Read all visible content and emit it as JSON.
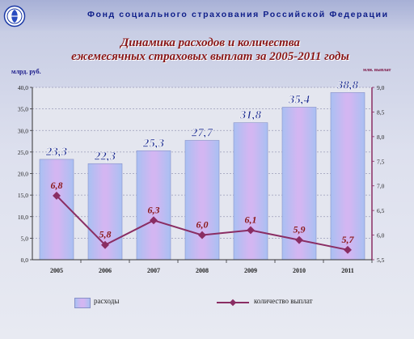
{
  "header": {
    "org_name": "Фонд социального страхования Российской Федерации",
    "title_line1": "Динамика расходов и количества",
    "title_line2": "ежемесячных страховых выплат за 2005-2011 годы"
  },
  "colors": {
    "bar_light": "#a9c0f2",
    "bar_mid": "#d3b6f2",
    "bar_label": "#1a2a8e",
    "line": "#8a2d63",
    "line_label": "#8a1818",
    "title": "#8a1818",
    "header_text": "#10208a"
  },
  "chart_data": {
    "type": "bar",
    "categories": [
      "2005",
      "2006",
      "2007",
      "2008",
      "2009",
      "2010",
      "2011"
    ],
    "ylabel_left": "млрд. руб.",
    "ylabel_right": "млн. выплат",
    "ylim_left": [
      0,
      40
    ],
    "ylim_right": [
      5.5,
      9.0
    ],
    "yticks_left": [
      "0,0",
      "5,0",
      "10,0",
      "15,0",
      "20,0",
      "25,0",
      "30,0",
      "35,0",
      "40,0"
    ],
    "yticks_right": [
      "5,5",
      "6,0",
      "6,5",
      "7,0",
      "7,5",
      "8,0",
      "8,5",
      "9,0"
    ],
    "series": [
      {
        "name": "расходы",
        "type": "bar",
        "axis": "left",
        "values": [
          23.3,
          22.3,
          25.3,
          27.7,
          31.8,
          35.4,
          38.8
        ],
        "labels": [
          "23,3",
          "22,3",
          "25,3",
          "27,7",
          "31,8",
          "35,4",
          "38,8"
        ]
      },
      {
        "name": "количество выплат",
        "type": "line",
        "axis": "right",
        "values": [
          6.8,
          5.8,
          6.3,
          6.0,
          6.1,
          5.9,
          5.7
        ],
        "labels": [
          "6,8",
          "5,8",
          "6,3",
          "6,0",
          "6,1",
          "5,9",
          "5,7"
        ]
      }
    ],
    "legend": "bottom"
  }
}
